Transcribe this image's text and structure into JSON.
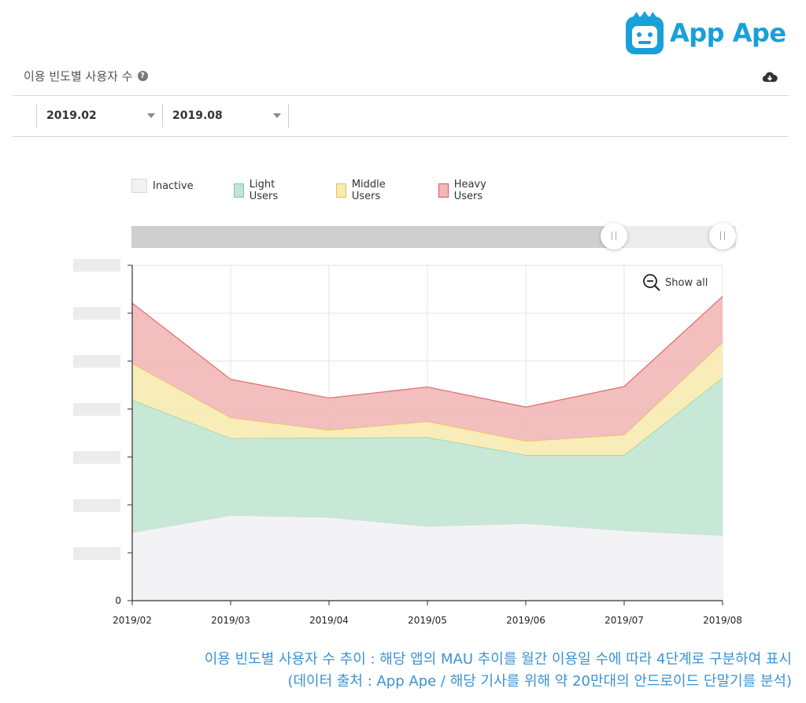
{
  "brand": {
    "name": "App Ape",
    "color": "#1aa0d8"
  },
  "section": {
    "title": "이용 빈도별 사용자 수",
    "help_icon": "question-icon",
    "download_icon": "cloud-download-icon"
  },
  "filters": {
    "from": "2019.02",
    "to": "2019.08"
  },
  "zoom": {
    "label": "Show all",
    "icon": "zoom-out-icon"
  },
  "range_slider": {
    "selected_fraction": 0.8
  },
  "caption": {
    "line1": "이용 빈도별 사용자 수 추이 : 해당 앱의 MAU 추이를 월간 이용일 수에 따라 4단계로 구분하여 표시",
    "line2": "(데이터 출처 : App Ape / 해당 기사를 위해 약 20만대의 안드로이드 단말기를 분석)"
  },
  "chart_data": {
    "type": "area",
    "stacked": true,
    "categories": [
      "2019/02",
      "2019/03",
      "2019/04",
      "2019/05",
      "2019/06",
      "2019/07",
      "2019/08"
    ],
    "y_zero_label": "0",
    "ylim": [
      0,
      7
    ],
    "y_ticks_hidden": 7,
    "grid": true,
    "legend_position": "top-left",
    "series": [
      {
        "name": "Inactive",
        "color": "#f2f2f4",
        "stroke": "#e0e0e0",
        "values": [
          1.42,
          1.78,
          1.74,
          1.55,
          1.61,
          1.46,
          1.36
        ]
      },
      {
        "name": "Light Users",
        "color": "#c1e5d3",
        "stroke": "#8ccfa9",
        "values": [
          2.77,
          1.61,
          1.66,
          1.86,
          1.43,
          1.58,
          3.29
        ]
      },
      {
        "name": "Middle Users",
        "color": "#f7ebb1",
        "stroke": "#efc74f",
        "values": [
          0.76,
          0.43,
          0.16,
          0.33,
          0.29,
          0.42,
          0.74
        ]
      },
      {
        "name": "Heavy Users",
        "color": "#f2b7b7",
        "stroke": "#e06a6a",
        "values": [
          1.26,
          0.8,
          0.67,
          0.72,
          0.71,
          1.01,
          0.96
        ]
      }
    ]
  }
}
